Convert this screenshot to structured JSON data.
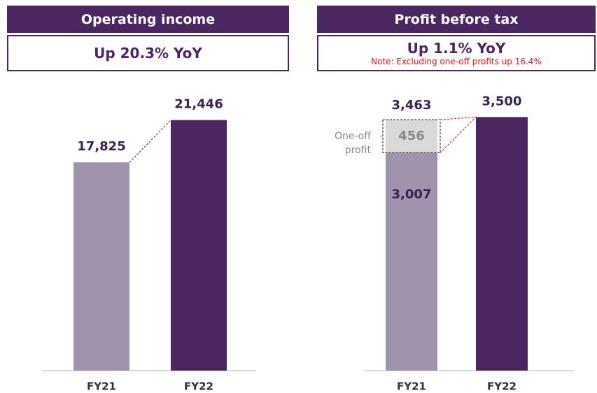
{
  "chart_data": [
    {
      "type": "bar",
      "title": "Operating income",
      "subtitle": "Up 20.3% YoY",
      "categories": [
        "FY21",
        "FY22"
      ],
      "values": [
        17825,
        21446
      ],
      "value_labels": [
        "17,825",
        "21,446"
      ],
      "colors": [
        "#a093ae",
        "#4a2760"
      ],
      "ylim": [
        0,
        24000
      ]
    },
    {
      "type": "stacked_bar",
      "title": "Profit before tax",
      "subtitle": "Up 1.1% YoY",
      "note": "Note: Excluding one-off profits  up 16.4%",
      "categories": [
        "FY21",
        "FY22"
      ],
      "series": [
        {
          "values": [
            3007,
            3500
          ],
          "value_labels": [
            "3,007",
            "3,500"
          ],
          "colors": [
            "#a093ae",
            "#4a2760"
          ]
        },
        {
          "name": "One-off profit",
          "values": [
            456,
            null
          ],
          "color": "#d9d9d9"
        }
      ],
      "totals": [
        3463,
        null
      ],
      "total_labels": [
        "3,463",
        null
      ],
      "ylim": [
        0,
        3870
      ]
    }
  ]
}
